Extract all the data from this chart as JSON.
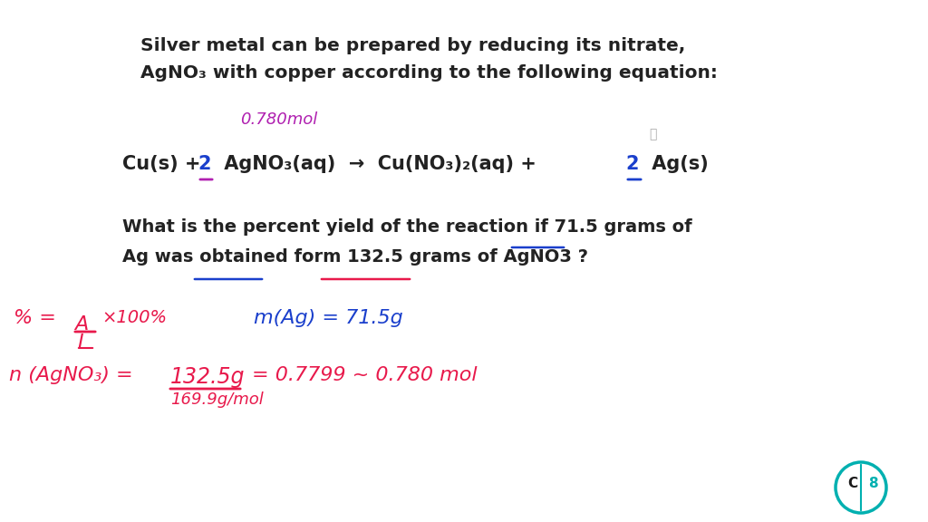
{
  "bg_color": "#ffffff",
  "title_lines": [
    "Silver metal can be prepared by reducing its nitrate,",
    "AgNO₃ with copper according to the following equation:"
  ],
  "question_lines": [
    "What is the percent yield of the reaction if 71.5 grams of",
    "Ag was obtained form 132.5 grams of AgNO3 ?"
  ],
  "annotation_mol": "0.780mol",
  "equation_left": "Cu(s) + 2 AgNO₃(aq)  →  Cu(NO₃)₂(aq) + 2 Ag(s)",
  "formula_percent": "% =",
  "formula_A": "A",
  "formula_I": "I",
  "formula_x100": "×100%",
  "formula_mAg": "m(Ag) = 71.5g",
  "formula_n1": "n (AgNO₃) =",
  "formula_num": "132.5g",
  "formula_den": "169.9g/mol",
  "formula_result": "= 0.7799 ~ 0.780 mol",
  "red_color": "#e8194b",
  "blue_color": "#1a3fcc",
  "purple_color": "#b020b0",
  "teal_color": "#00b0b0",
  "dark_color": "#1a1a1a",
  "text_color": "#222222"
}
